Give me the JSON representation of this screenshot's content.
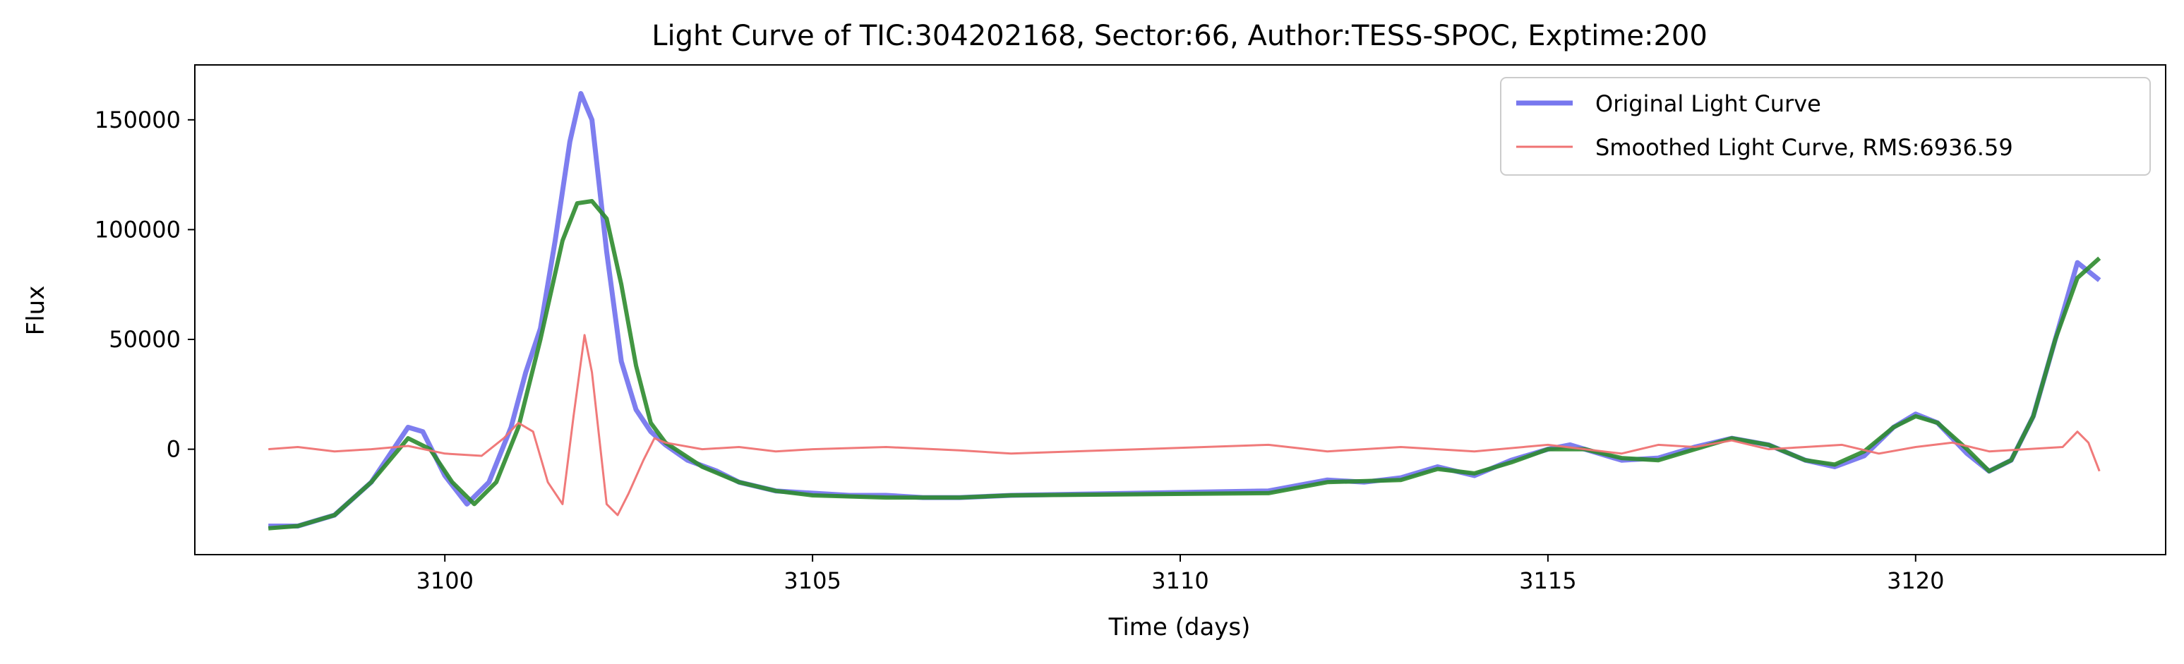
{
  "chart_data": {
    "type": "line",
    "title": "Light Curve of TIC:304202168, Sector:66, Author:TESS-SPOC, Exptime:200",
    "xlabel": "Time (days)",
    "ylabel": "Flux",
    "xlim": [
      3096.6,
      3123.4
    ],
    "ylim": [
      -48000,
      175000
    ],
    "xticks": [
      3100,
      3105,
      3110,
      3115,
      3120
    ],
    "yticks": [
      0,
      50000,
      100000,
      150000
    ],
    "xtick_labels": [
      "3100",
      "3105",
      "3110",
      "3115",
      "3120"
    ],
    "ytick_labels": [
      "0",
      "50000",
      "100000",
      "150000"
    ],
    "grid": false,
    "legend": {
      "placement": "top-right",
      "entries": [
        "Original Light Curve",
        "Smoothed Light Curve, RMS:6936.59"
      ]
    },
    "series": [
      {
        "name": "Original Light Curve",
        "color": "#7777ee",
        "x": [
          3097.6,
          3098.0,
          3098.5,
          3099.0,
          3099.3,
          3099.5,
          3099.7,
          3100.0,
          3100.3,
          3100.6,
          3100.9,
          3101.1,
          3101.3,
          3101.5,
          3101.7,
          3101.85,
          3102.0,
          3102.2,
          3102.4,
          3102.6,
          3102.8,
          3103.0,
          3103.3,
          3103.7,
          3104.0,
          3104.5,
          3105.0,
          3105.5,
          3106.0,
          3106.5,
          3107.0,
          3107.7,
          3111.2,
          3112.0,
          3112.5,
          3113.0,
          3113.5,
          3114.0,
          3114.5,
          3115.0,
          3115.3,
          3115.7,
          3116.0,
          3116.5,
          3117.0,
          3117.5,
          3118.0,
          3118.5,
          3118.9,
          3119.3,
          3119.7,
          3120.0,
          3120.3,
          3120.7,
          3121.0,
          3121.3,
          3121.6,
          3121.9,
          3122.2,
          3122.5
        ],
        "y": [
          -35000,
          -35000,
          -30000,
          -15000,
          0,
          10000,
          8000,
          -12000,
          -25000,
          -15000,
          10000,
          35000,
          55000,
          95000,
          140000,
          162000,
          150000,
          90000,
          40000,
          18000,
          8000,
          2000,
          -5000,
          -10000,
          -15000,
          -19000,
          -20000,
          -21000,
          -21000,
          -22000,
          -22000,
          -21000,
          -19000,
          -14000,
          -15000,
          -13000,
          -8000,
          -12000,
          -5000,
          0,
          2000,
          -2000,
          -5000,
          -4000,
          1000,
          5000,
          2000,
          -5000,
          -8000,
          -3000,
          10000,
          16000,
          12000,
          -2000,
          -10000,
          -5000,
          15000,
          50000,
          85000,
          77000
        ]
      },
      {
        "name": "",
        "color": "#2e8b2e",
        "x": [
          3097.6,
          3098.0,
          3098.5,
          3099.0,
          3099.5,
          3099.8,
          3100.1,
          3100.4,
          3100.7,
          3101.0,
          3101.3,
          3101.6,
          3101.8,
          3102.0,
          3102.2,
          3102.4,
          3102.6,
          3102.8,
          3103.0,
          3103.5,
          3104.0,
          3104.5,
          3105.0,
          3106.0,
          3107.0,
          3107.7,
          3111.2,
          3112.0,
          3113.0,
          3113.5,
          3114.0,
          3114.5,
          3115.0,
          3115.5,
          3116.0,
          3116.5,
          3117.0,
          3117.5,
          3118.0,
          3118.5,
          3118.9,
          3119.3,
          3119.7,
          3120.0,
          3120.3,
          3120.7,
          3121.0,
          3121.3,
          3121.6,
          3121.9,
          3122.2,
          3122.5
        ],
        "y": [
          -36000,
          -35000,
          -30000,
          -15000,
          5000,
          0,
          -15000,
          -25000,
          -15000,
          10000,
          50000,
          95000,
          112000,
          113000,
          105000,
          75000,
          38000,
          12000,
          3000,
          -8000,
          -15000,
          -19000,
          -21000,
          -22000,
          -22000,
          -21000,
          -20000,
          -15000,
          -14000,
          -9000,
          -11000,
          -6000,
          0,
          0,
          -4000,
          -5000,
          0,
          5000,
          2000,
          -5000,
          -7000,
          -1000,
          10000,
          15000,
          12000,
          0,
          -10000,
          -5000,
          15000,
          50000,
          78000,
          87000
        ]
      },
      {
        "name": "Smoothed Light Curve, RMS:6936.59",
        "color": "#ef7373",
        "x": [
          3097.6,
          3098.0,
          3098.5,
          3099.0,
          3099.5,
          3100.0,
          3100.5,
          3100.8,
          3101.0,
          3101.2,
          3101.4,
          3101.6,
          3101.75,
          3101.9,
          3102.0,
          3102.1,
          3102.2,
          3102.35,
          3102.5,
          3102.7,
          3102.85,
          3103.0,
          3103.5,
          3104.0,
          3104.5,
          3105.0,
          3106.0,
          3107.0,
          3107.7,
          3111.2,
          3112.0,
          3113.0,
          3114.0,
          3115.0,
          3115.5,
          3116.0,
          3116.5,
          3117.0,
          3117.5,
          3118.0,
          3118.5,
          3119.0,
          3119.5,
          3120.0,
          3120.5,
          3121.0,
          3121.5,
          3122.0,
          3122.2,
          3122.35,
          3122.5
        ],
        "y": [
          0,
          1000,
          -1000,
          0,
          1500,
          -2000,
          -3000,
          5000,
          12000,
          8000,
          -15000,
          -25000,
          15000,
          52000,
          35000,
          5000,
          -25000,
          -30000,
          -20000,
          -5000,
          5000,
          3000,
          0,
          1000,
          -1000,
          0,
          1000,
          -500,
          -2000,
          2000,
          -1000,
          1000,
          -1000,
          2000,
          0,
          -2000,
          2000,
          1000,
          4000,
          0,
          1000,
          2000,
          -2000,
          1000,
          3000,
          -1000,
          0,
          1000,
          8000,
          3000,
          -10000
        ]
      }
    ]
  }
}
